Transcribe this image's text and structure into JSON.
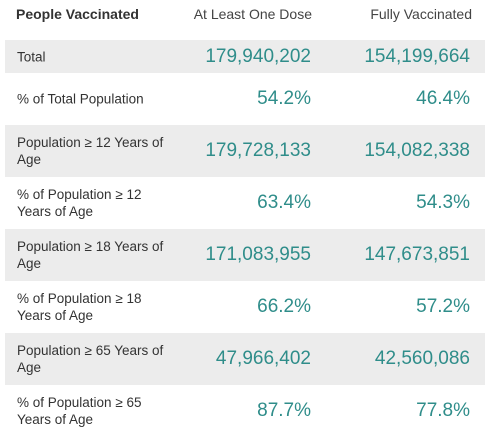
{
  "header": {
    "col1": "People Vaccinated",
    "col2": "At Least One Dose",
    "col3": "Fully Vaccinated"
  },
  "rows": [
    {
      "label": "Total",
      "one_dose": "179,940,202",
      "fully": "154,199,664"
    },
    {
      "label": "% of Total Population",
      "one_dose": "54.2%",
      "fully": "46.4%"
    },
    {
      "label": "Population ≥ 12 Years of Age",
      "one_dose": "179,728,133",
      "fully": "154,082,338"
    },
    {
      "label": "% of Population ≥ 12 Years of Age",
      "one_dose": "63.4%",
      "fully": "54.3%"
    },
    {
      "label": "Population ≥ 18 Years of Age",
      "one_dose": "171,083,955",
      "fully": "147,673,851"
    },
    {
      "label": "% of Population ≥ 18 Years of Age",
      "one_dose": "66.2%",
      "fully": "57.2%"
    },
    {
      "label": "Population ≥ 65 Years of Age",
      "one_dose": "47,966,402",
      "fully": "42,560,086"
    },
    {
      "label": "% of Population ≥ 65 Years of Age",
      "one_dose": "87.7%",
      "fully": "77.8%"
    }
  ],
  "colors": {
    "value": "#2f8d8a",
    "shaded_row": "#ececec"
  }
}
